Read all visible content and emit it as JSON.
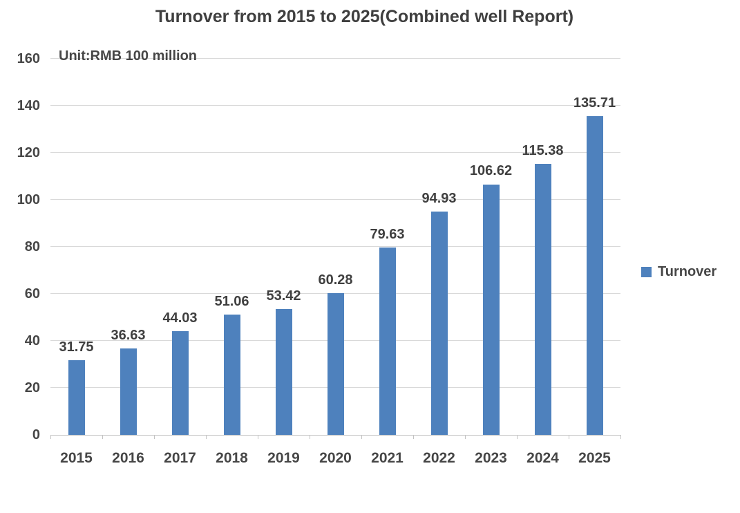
{
  "chart_data": {
    "type": "bar",
    "title": "Turnover from 2015 to 2025(Combined well Report)",
    "unit_label": "Unit:RMB 100 million",
    "categories": [
      "2015",
      "2016",
      "2017",
      "2018",
      "2019",
      "2020",
      "2021",
      "2022",
      "2023",
      "2024",
      "2025"
    ],
    "series": [
      {
        "name": "Turnover",
        "values": [
          31.75,
          36.63,
          44.03,
          51.06,
          53.42,
          60.28,
          79.63,
          94.93,
          106.62,
          115.38,
          135.71
        ]
      }
    ],
    "data_labels_visible": true,
    "label_decimals": 2,
    "xlabel": "",
    "ylabel": "",
    "ylim": [
      0,
      160
    ],
    "yticks": [
      0,
      20,
      40,
      60,
      80,
      100,
      120,
      140,
      160
    ],
    "grid": true,
    "legend": {
      "position": "right",
      "entries": [
        "Turnover"
      ]
    },
    "colors": {
      "bar": "#4e81bd",
      "title_text": "#3f3f3f",
      "label_text": "#464646",
      "gridline": "#d9d9d9",
      "axis_line": "#c3c3c3",
      "background": "#ffffff"
    }
  }
}
